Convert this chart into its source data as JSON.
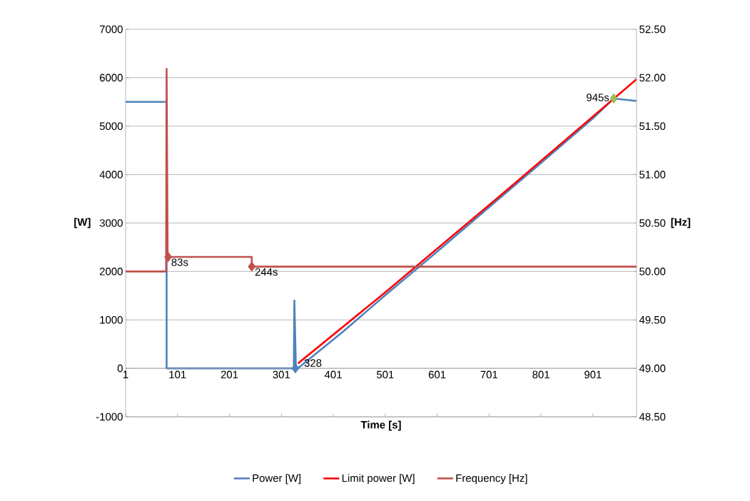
{
  "chart_data": {
    "type": "line",
    "xlabel": "Time [s]",
    "ylabel": "[W]",
    "y2label": "[Hz]",
    "xlim": [
      1,
      985
    ],
    "xticks": [
      1,
      101,
      201,
      301,
      401,
      501,
      601,
      701,
      801,
      901
    ],
    "ylim": [
      -1000,
      7000
    ],
    "yticks": [
      -1000,
      0,
      1000,
      2000,
      3000,
      4000,
      5000,
      6000,
      7000
    ],
    "y2lim": [
      48.5,
      52.5
    ],
    "y2ticks": [
      {
        "value": 48.5,
        "label": "48.50"
      },
      {
        "value": 49.0,
        "label": "49.00"
      },
      {
        "value": 49.5,
        "label": "49.50"
      },
      {
        "value": 50.0,
        "label": "50.00"
      },
      {
        "value": 50.5,
        "label": "50.50"
      },
      {
        "value": 51.0,
        "label": "51.00"
      },
      {
        "value": 51.5,
        "label": "51.50"
      },
      {
        "value": 52.0,
        "label": "52.00"
      },
      {
        "value": 52.5,
        "label": "52.50"
      }
    ],
    "grid": "y",
    "legend": "bottom",
    "series": [
      {
        "name": "Power [W]",
        "color": "#4f81bd",
        "x": [
          1,
          80,
          80,
          325,
          326,
          329,
          335,
          420,
          500,
          600,
          720,
          800,
          900,
          941,
          985
        ],
        "values": [
          5500,
          5500,
          0,
          0,
          1400,
          0,
          20,
          760,
          1500,
          2400,
          3500,
          4230,
          5150,
          5570,
          5520
        ]
      },
      {
        "name": "Limit power [W]",
        "color": "#ff0000",
        "x": [
          333,
          500,
          720,
          985
        ],
        "values": [
          100,
          1560,
          3540,
          5970
        ]
      },
      {
        "name": "Frequency [Hz]",
        "color": "#c0504d",
        "axis": "y2",
        "x": [
          1,
          79,
          80,
          82,
          244,
          244,
          985
        ],
        "values": [
          50.0,
          50.0,
          52.09,
          50.15,
          50.15,
          50.05,
          50.05
        ]
      },
      {
        "type": "scatter",
        "marker": "diamond",
        "axis": "y2",
        "color": "#c0504d",
        "x": [
          83,
          244
        ],
        "values": [
          50.15,
          50.05
        ]
      },
      {
        "type": "scatter",
        "marker": "diamond",
        "colors": [
          "#4f81bd",
          "#9bbb59"
        ],
        "x": [
          328,
          941
        ],
        "values": [
          0,
          5570
        ]
      }
    ],
    "annotations": [
      {
        "text": "83s",
        "x": 83,
        "y": 2300
      },
      {
        "text": "244s",
        "x": 244,
        "y": 2100
      },
      {
        "text": "328",
        "x": 328,
        "y": 0
      },
      {
        "text": "945s",
        "x": 941,
        "y": 5570
      }
    ]
  }
}
